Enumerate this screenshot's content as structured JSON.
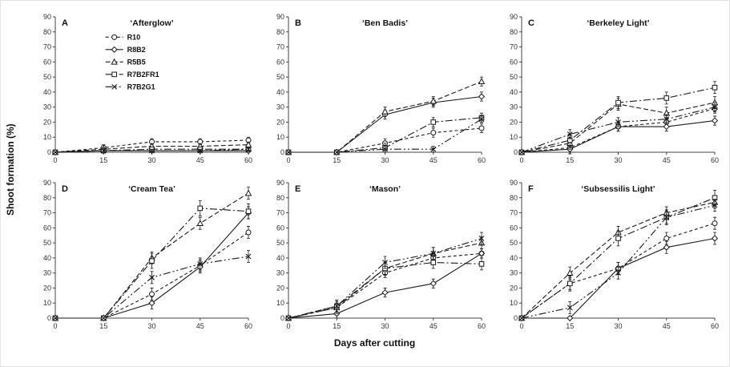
{
  "figure": {
    "ylabel": "Shoot formation (%)",
    "xlabel": "Days after cutting"
  },
  "axes": {
    "xticks": [
      0,
      15,
      30,
      45,
      60
    ],
    "yticks": [
      0,
      10,
      20,
      30,
      40,
      50,
      60,
      70,
      80,
      90
    ],
    "xlim": [
      0,
      60
    ],
    "ylim": [
      0,
      90
    ]
  },
  "legend": [
    {
      "label": "R10",
      "marker": "circle",
      "dash": "4 3"
    },
    {
      "label": "R8B2",
      "marker": "diamond",
      "dash": ""
    },
    {
      "label": "R5B5",
      "marker": "triangle",
      "dash": "6 3"
    },
    {
      "label": "R7B2FR1",
      "marker": "square",
      "dash": "9 3 2 3"
    },
    {
      "label": "R7B2G1",
      "marker": "x",
      "dash": "9 3 2 3 2 3"
    }
  ],
  "chart_data": [
    {
      "type": "line",
      "panel": "A",
      "title": "‘Afterglow’",
      "x": [
        0,
        15,
        30,
        45,
        60
      ],
      "ylim": [
        0,
        90
      ],
      "legend_inside": true,
      "series": [
        {
          "name": "R10",
          "values": [
            0,
            3,
            7,
            7,
            8
          ],
          "err": 2
        },
        {
          "name": "R8B2",
          "values": [
            0,
            1,
            1,
            1,
            1
          ],
          "err": 1
        },
        {
          "name": "R5B5",
          "values": [
            0,
            2,
            4,
            4,
            5
          ],
          "err": 1
        },
        {
          "name": "R7B2FR1",
          "values": [
            0,
            1,
            2,
            2,
            2
          ],
          "err": 1
        },
        {
          "name": "R7B2G1",
          "values": [
            0,
            1,
            1,
            1,
            2
          ],
          "err": 1
        }
      ]
    },
    {
      "type": "line",
      "panel": "B",
      "title": "‘Ben Badis’",
      "x": [
        0,
        15,
        30,
        45,
        60
      ],
      "ylim": [
        0,
        90
      ],
      "legend_inside": false,
      "series": [
        {
          "name": "R10",
          "values": [
            0,
            0,
            6,
            13,
            16
          ],
          "err": 3
        },
        {
          "name": "R8B2",
          "values": [
            0,
            0,
            25,
            33,
            37
          ],
          "err": 3
        },
        {
          "name": "R5B5",
          "values": [
            0,
            0,
            27,
            34,
            47
          ],
          "err": 3
        },
        {
          "name": "R7B2FR1",
          "values": [
            0,
            0,
            3,
            20,
            23
          ],
          "err": 3
        },
        {
          "name": "R7B2G1",
          "values": [
            0,
            0,
            2,
            2,
            22
          ],
          "err": 2
        }
      ]
    },
    {
      "type": "line",
      "panel": "C",
      "title": "‘Berkeley Light’",
      "x": [
        0,
        15,
        30,
        45,
        60
      ],
      "ylim": [
        0,
        90
      ],
      "legend_inside": false,
      "series": [
        {
          "name": "R10",
          "values": [
            0,
            3,
            17,
            20,
            29
          ],
          "err": 3
        },
        {
          "name": "R8B2",
          "values": [
            0,
            2,
            17,
            17,
            21
          ],
          "err": 3
        },
        {
          "name": "R5B5",
          "values": [
            0,
            6,
            32,
            26,
            33
          ],
          "err": 4
        },
        {
          "name": "R7B2FR1",
          "values": [
            0,
            8,
            33,
            36,
            43
          ],
          "err": 4
        },
        {
          "name": "R7B2G1",
          "values": [
            0,
            12,
            20,
            22,
            30
          ],
          "err": 3
        }
      ]
    },
    {
      "type": "line",
      "panel": "D",
      "title": "‘Cream Tea’",
      "x": [
        0,
        15,
        30,
        45,
        60
      ],
      "ylim": [
        0,
        90
      ],
      "legend_inside": false,
      "series": [
        {
          "name": "R10",
          "values": [
            0,
            0,
            16,
            35,
            57
          ],
          "err": 4
        },
        {
          "name": "R8B2",
          "values": [
            0,
            0,
            10,
            34,
            70
          ],
          "err": 4
        },
        {
          "name": "R5B5",
          "values": [
            0,
            0,
            40,
            63,
            83
          ],
          "err": 4
        },
        {
          "name": "R7B2FR1",
          "values": [
            0,
            0,
            38,
            73,
            71
          ],
          "err": 5
        },
        {
          "name": "R7B2G1",
          "values": [
            0,
            0,
            27,
            36,
            41
          ],
          "err": 4
        }
      ]
    },
    {
      "type": "line",
      "panel": "E",
      "title": "‘Mason’",
      "x": [
        0,
        15,
        30,
        45,
        60
      ],
      "ylim": [
        0,
        90
      ],
      "legend_inside": false,
      "series": [
        {
          "name": "R10",
          "values": [
            0,
            7,
            30,
            40,
            43
          ],
          "err": 3
        },
        {
          "name": "R8B2",
          "values": [
            0,
            3,
            17,
            23,
            43
          ],
          "err": 3
        },
        {
          "name": "R5B5",
          "values": [
            0,
            7,
            33,
            43,
            50
          ],
          "err": 4
        },
        {
          "name": "R7B2FR1",
          "values": [
            0,
            8,
            33,
            37,
            36
          ],
          "err": 4
        },
        {
          "name": "R7B2G1",
          "values": [
            0,
            8,
            37,
            43,
            53
          ],
          "err": 4
        }
      ]
    },
    {
      "type": "line",
      "panel": "F",
      "title": "‘Subsessilis Light’",
      "x": [
        0,
        15,
        30,
        45,
        60
      ],
      "ylim": [
        0,
        90
      ],
      "legend_inside": false,
      "series": [
        {
          "name": "R10",
          "values": [
            0,
            23,
            33,
            53,
            63
          ],
          "err": 4
        },
        {
          "name": "R8B2",
          "values": [
            0,
            0,
            33,
            47,
            53
          ],
          "err": 4
        },
        {
          "name": "R5B5",
          "values": [
            0,
            30,
            57,
            70,
            77
          ],
          "err": 4
        },
        {
          "name": "R7B2FR1",
          "values": [
            0,
            23,
            53,
            67,
            80
          ],
          "err": 5
        },
        {
          "name": "R7B2G1",
          "values": [
            0,
            7,
            30,
            67,
            75
          ],
          "err": 4
        }
      ]
    }
  ]
}
